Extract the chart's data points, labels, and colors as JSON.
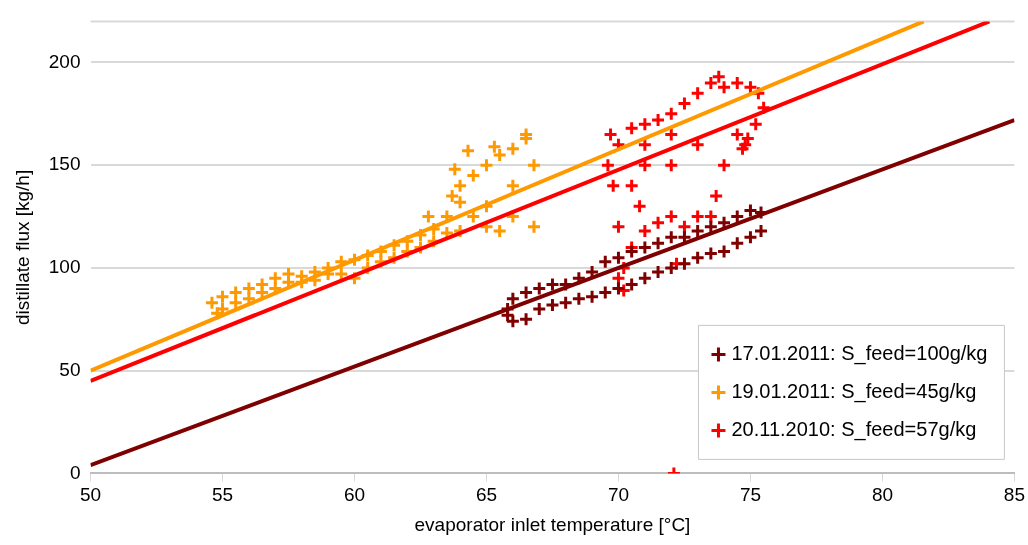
{
  "chart_data": {
    "type": "scatter",
    "xlabel": "evaporator inlet temperature [°C]",
    "ylabel": "distillate flux [kg/h]",
    "xlim": [
      50,
      85
    ],
    "xticks": [
      50,
      55,
      60,
      65,
      70,
      75,
      80,
      85
    ],
    "ylim": [
      0,
      220
    ],
    "yticks": [
      0,
      50,
      100,
      150,
      200
    ],
    "grid": "y",
    "legend": "bottom right",
    "series": [
      {
        "name": "17.01.2011: S_feed=100g/kg",
        "color": "#7f0000",
        "marker": "cross",
        "x": [
          65.8,
          66,
          66.5,
          67,
          67.5,
          68,
          68.5,
          69,
          69.5,
          70,
          70.5,
          71,
          71.5,
          72,
          72.5,
          73,
          73.5,
          74,
          74.5,
          75,
          75.4,
          75.4,
          75,
          74.5,
          74,
          73.5,
          73,
          72.5,
          72,
          71.5,
          71,
          70.5,
          70,
          69.5,
          69,
          68.5,
          68,
          67.5,
          67,
          66.5,
          66,
          65.8
        ],
        "values": [
          80,
          85,
          88,
          90,
          92,
          92,
          95,
          98,
          103,
          105,
          108,
          110,
          112,
          115,
          115,
          118,
          120,
          122,
          125,
          128,
          127,
          118,
          115,
          112,
          108,
          107,
          105,
          102,
          100,
          98,
          95,
          92,
          90,
          88,
          86,
          85,
          83,
          82,
          80,
          75,
          74,
          77
        ]
      },
      {
        "name": "19.01.2011: S_feed=45g/kg",
        "color": "#ff9900",
        "marker": "cross",
        "x": [
          54.6,
          55,
          55.5,
          56,
          56.5,
          57,
          57.5,
          58,
          58.5,
          59,
          59.5,
          60,
          60.5,
          61,
          61.5,
          62,
          62.5,
          63,
          63.5,
          63.7,
          64,
          64.5,
          65,
          65.5,
          66,
          66.5,
          66.8,
          66.8,
          66,
          65.5,
          65,
          64.5,
          64,
          63.5,
          63,
          62.5,
          62,
          61.5,
          61,
          60.5,
          60,
          59.5,
          59,
          58.5,
          58,
          57.5,
          57,
          56.5,
          56,
          55.5,
          55,
          54.8,
          63.8,
          64.3,
          65.3,
          66.5,
          65,
          66,
          64,
          62.8
        ],
        "values": [
          83,
          86,
          88,
          90,
          92,
          95,
          97,
          96,
          98,
          100,
          103,
          104,
          106,
          108,
          111,
          113,
          116,
          119,
          125,
          135,
          140,
          145,
          150,
          155,
          158,
          163,
          150,
          120,
          125,
          118,
          120,
          125,
          118,
          117,
          113,
          110,
          108,
          105,
          103,
          100,
          95,
          97,
          97,
          94,
          93,
          93,
          90,
          88,
          85,
          83,
          80,
          78,
          148,
          157,
          159,
          165,
          130,
          140,
          132,
          125
        ]
      },
      {
        "name": "20.11.2010: S_feed=57g/kg",
        "color": "#ff0000",
        "marker": "cross",
        "x": [
          69.6,
          69.7,
          70,
          70.5,
          71,
          71.5,
          72,
          72.5,
          73,
          73.5,
          73.8,
          74,
          74.5,
          75,
          75.3,
          75.5,
          75.2,
          74.8,
          74.5,
          74,
          73.7,
          73.5,
          73,
          72.5,
          72,
          71.5,
          71,
          70.5,
          70.2,
          70,
          70.2,
          70,
          69.8,
          70.5,
          71,
          72,
          73,
          72,
          71,
          70.8,
          72.2,
          74.7,
          74.9,
          72.1
        ],
        "values": [
          150,
          165,
          160,
          168,
          170,
          172,
          175,
          180,
          185,
          190,
          193,
          188,
          190,
          188,
          185,
          178,
          170,
          160,
          165,
          150,
          135,
          125,
          125,
          120,
          125,
          122,
          118,
          110,
          100,
          95,
          89,
          120,
          140,
          140,
          150,
          150,
          160,
          165,
          160,
          130,
          102,
          158,
          163,
          0
        ]
      },
      {
        "type": "line",
        "color": "#7f0000",
        "x": [
          50,
          85
        ],
        "values": [
          4,
          172
        ]
      },
      {
        "type": "line",
        "color": "#ff9900",
        "x": [
          50,
          81.56
        ],
        "values": [
          50,
          220
        ]
      },
      {
        "type": "line",
        "color": "#ff0000",
        "x": [
          50,
          84.05
        ],
        "values": [
          45,
          220
        ]
      }
    ]
  }
}
